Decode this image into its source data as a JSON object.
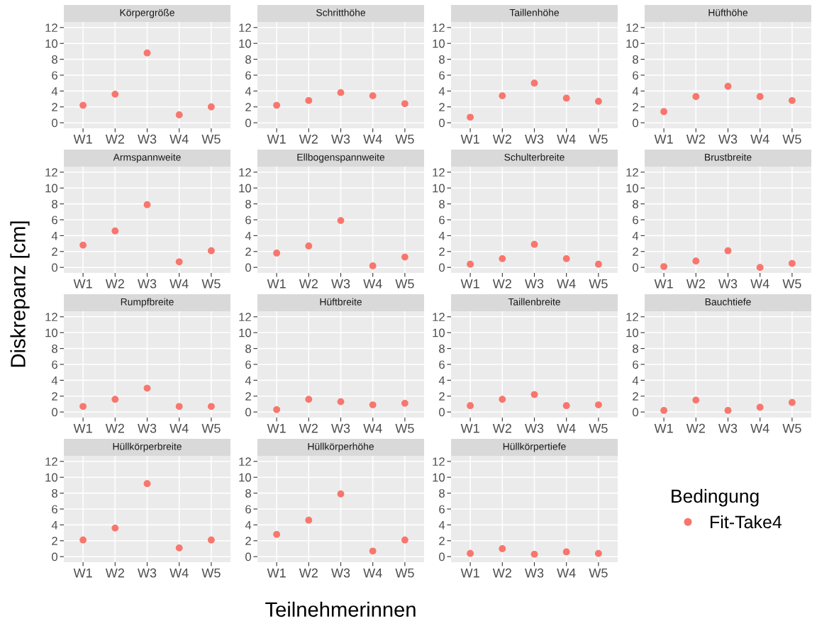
{
  "chart_data": [
    {
      "type": "scatter",
      "title": "Körpergröße",
      "ylabel": "Diskrepanz [cm]",
      "legend_title": "Bedingung",
      "legend": "right",
      "categories": [
        "W1",
        "W2",
        "W3",
        "W4",
        "W5"
      ],
      "series": [
        {
          "name": "Fit-Take4",
          "color": "#f8766d",
          "values": [
            2.2,
            3.6,
            8.8,
            1.0,
            2.0
          ]
        }
      ],
      "ylim": [
        -0.7,
        12.7
      ],
      "yticks": [
        0,
        2,
        4,
        6,
        8,
        10,
        12
      ],
      "grid": true
    },
    {
      "type": "scatter",
      "title": "Schritthöhe",
      "categories": [
        "W1",
        "W2",
        "W3",
        "W4",
        "W5"
      ],
      "series": [
        {
          "color": "#f8766d",
          "values": [
            2.2,
            2.8,
            3.8,
            3.4,
            2.4
          ]
        }
      ],
      "ylim": [
        -0.7,
        12.7
      ],
      "yticks": [
        0,
        2,
        4,
        6,
        8,
        10,
        12
      ],
      "grid": true
    },
    {
      "type": "scatter",
      "title": "Taillenhöhe",
      "categories": [
        "W1",
        "W2",
        "W3",
        "W4",
        "W5"
      ],
      "series": [
        {
          "color": "#f8766d",
          "values": [
            0.7,
            3.4,
            5.0,
            3.1,
            2.7
          ]
        }
      ],
      "ylim": [
        -0.7,
        12.7
      ],
      "yticks": [
        0,
        2,
        4,
        6,
        8,
        10,
        12
      ],
      "grid": true
    },
    {
      "type": "scatter",
      "title": "Hüfthöhe",
      "categories": [
        "W1",
        "W2",
        "W3",
        "W4",
        "W5"
      ],
      "series": [
        {
          "color": "#f8766d",
          "values": [
            1.4,
            3.3,
            4.6,
            3.3,
            2.8
          ]
        }
      ],
      "ylim": [
        -0.7,
        12.7
      ],
      "yticks": [
        0,
        2,
        4,
        6,
        8,
        10,
        12
      ],
      "grid": true
    },
    {
      "type": "scatter",
      "title": "Armspannweite",
      "categories": [
        "W1",
        "W2",
        "W3",
        "W4",
        "W5"
      ],
      "series": [
        {
          "color": "#f8766d",
          "values": [
            2.8,
            4.6,
            7.9,
            0.7,
            2.1
          ]
        }
      ],
      "ylim": [
        -0.7,
        12.7
      ],
      "yticks": [
        0,
        2,
        4,
        6,
        8,
        10,
        12
      ],
      "grid": true
    },
    {
      "type": "scatter",
      "title": "Ellbogenspannweite",
      "categories": [
        "W1",
        "W2",
        "W3",
        "W4",
        "W5"
      ],
      "series": [
        {
          "color": "#f8766d",
          "values": [
            1.8,
            2.7,
            5.9,
            0.2,
            1.3
          ]
        }
      ],
      "ylim": [
        -0.7,
        12.7
      ],
      "yticks": [
        0,
        2,
        4,
        6,
        8,
        10,
        12
      ],
      "grid": true
    },
    {
      "type": "scatter",
      "title": "Schulterbreite",
      "categories": [
        "W1",
        "W2",
        "W3",
        "W4",
        "W5"
      ],
      "series": [
        {
          "color": "#f8766d",
          "values": [
            0.4,
            1.1,
            2.9,
            1.1,
            0.4
          ]
        }
      ],
      "ylim": [
        -0.7,
        12.7
      ],
      "yticks": [
        0,
        2,
        4,
        6,
        8,
        10,
        12
      ],
      "grid": true
    },
    {
      "type": "scatter",
      "title": "Brustbreite",
      "categories": [
        "W1",
        "W2",
        "W3",
        "W4",
        "W5"
      ],
      "series": [
        {
          "color": "#f8766d",
          "values": [
            0.1,
            0.8,
            2.1,
            0.0,
            0.5
          ]
        }
      ],
      "ylim": [
        -0.7,
        12.7
      ],
      "yticks": [
        0,
        2,
        4,
        6,
        8,
        10,
        12
      ],
      "grid": true
    },
    {
      "type": "scatter",
      "title": "Rumpfbreite",
      "categories": [
        "W1",
        "W2",
        "W3",
        "W4",
        "W5"
      ],
      "series": [
        {
          "color": "#f8766d",
          "values": [
            0.7,
            1.6,
            3.0,
            0.7,
            0.7
          ]
        }
      ],
      "ylim": [
        -0.7,
        12.7
      ],
      "yticks": [
        0,
        2,
        4,
        6,
        8,
        10,
        12
      ],
      "grid": true
    },
    {
      "type": "scatter",
      "title": "Hüftbreite",
      "categories": [
        "W1",
        "W2",
        "W3",
        "W4",
        "W5"
      ],
      "series": [
        {
          "color": "#f8766d",
          "values": [
            0.3,
            1.6,
            1.3,
            0.9,
            1.1
          ]
        }
      ],
      "ylim": [
        -0.7,
        12.7
      ],
      "yticks": [
        0,
        2,
        4,
        6,
        8,
        10,
        12
      ],
      "grid": true
    },
    {
      "type": "scatter",
      "title": "Taillenbreite",
      "categories": [
        "W1",
        "W2",
        "W3",
        "W4",
        "W5"
      ],
      "series": [
        {
          "color": "#f8766d",
          "values": [
            0.8,
            1.6,
            2.2,
            0.8,
            0.9
          ]
        }
      ],
      "ylim": [
        -0.7,
        12.7
      ],
      "yticks": [
        0,
        2,
        4,
        6,
        8,
        10,
        12
      ],
      "grid": true
    },
    {
      "type": "scatter",
      "title": "Bauchtiefe",
      "categories": [
        "W1",
        "W2",
        "W3",
        "W4",
        "W5"
      ],
      "series": [
        {
          "color": "#f8766d",
          "values": [
            0.2,
            1.5,
            0.2,
            0.6,
            1.2
          ]
        }
      ],
      "ylim": [
        -0.7,
        12.7
      ],
      "yticks": [
        0,
        2,
        4,
        6,
        8,
        10,
        12
      ],
      "grid": true
    },
    {
      "type": "scatter",
      "title": "Hüllkörperbreite",
      "categories": [
        "W1",
        "W2",
        "W3",
        "W4",
        "W5"
      ],
      "series": [
        {
          "color": "#f8766d",
          "values": [
            2.1,
            3.6,
            9.2,
            1.1,
            2.1
          ]
        }
      ],
      "ylim": [
        -0.7,
        12.7
      ],
      "yticks": [
        0,
        2,
        4,
        6,
        8,
        10,
        12
      ],
      "grid": true
    },
    {
      "type": "scatter",
      "title": "Hüllkörperhöhe",
      "xlabel": "Teilnehmerinnen",
      "categories": [
        "W1",
        "W2",
        "W3",
        "W4",
        "W5"
      ],
      "series": [
        {
          "color": "#f8766d",
          "values": [
            2.8,
            4.6,
            7.9,
            0.7,
            2.1
          ]
        }
      ],
      "ylim": [
        -0.7,
        12.7
      ],
      "yticks": [
        0,
        2,
        4,
        6,
        8,
        10,
        12
      ],
      "grid": true
    },
    {
      "type": "scatter",
      "title": "Hüllkörpertiefe",
      "categories": [
        "W1",
        "W2",
        "W3",
        "W4",
        "W5"
      ],
      "series": [
        {
          "color": "#f8766d",
          "values": [
            0.4,
            1.0,
            0.3,
            0.6,
            0.4
          ]
        }
      ],
      "ylim": [
        -0.7,
        12.7
      ],
      "yticks": [
        0,
        2,
        4,
        6,
        8,
        10,
        12
      ],
      "grid": true
    }
  ]
}
